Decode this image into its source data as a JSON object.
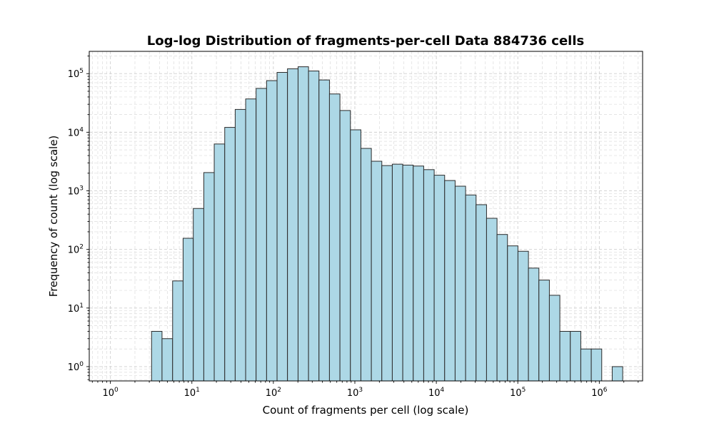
{
  "chart_data": {
    "type": "bar",
    "title": "Log-log Distribution of fragments-per-cell Data 884736 cells",
    "xlabel": "Count of fragments per cell (log scale)",
    "ylabel": "Frequency of count (log scale)",
    "xscale": "log",
    "yscale": "log",
    "xlim": [
      0.55,
      3400000
    ],
    "ylim": [
      0.57,
      240000
    ],
    "grid": true,
    "x_ticks": [
      {
        "base": "10",
        "exp": "0",
        "value": 1
      },
      {
        "base": "10",
        "exp": "1",
        "value": 10
      },
      {
        "base": "10",
        "exp": "2",
        "value": 100
      },
      {
        "base": "10",
        "exp": "3",
        "value": 1000
      },
      {
        "base": "10",
        "exp": "4",
        "value": 10000
      },
      {
        "base": "10",
        "exp": "5",
        "value": 100000
      },
      {
        "base": "10",
        "exp": "6",
        "value": 1000000
      }
    ],
    "y_ticks": [
      {
        "base": "10",
        "exp": "0",
        "value": 1
      },
      {
        "base": "10",
        "exp": "1",
        "value": 10
      },
      {
        "base": "10",
        "exp": "2",
        "value": 100
      },
      {
        "base": "10",
        "exp": "3",
        "value": 1000
      },
      {
        "base": "10",
        "exp": "4",
        "value": 10000
      },
      {
        "base": "10",
        "exp": "5",
        "value": 100000
      }
    ],
    "bin_edges": [
      3.2,
      4.3,
      5.8,
      7.8,
      10.4,
      14.0,
      18.8,
      25.3,
      34.0,
      45.7,
      61.4,
      82.6,
      111,
      149,
      201,
      270,
      363,
      488,
      656,
      882,
      1186,
      1594,
      2143,
      2881,
      3873,
      5207,
      7000,
      9411,
      12651,
      17008,
      22865,
      30739,
      41325,
      55556,
      74689,
      100409,
      134988,
      181474,
      243968,
      327984,
      440929,
      592770,
      796900,
      1071326,
      1440255,
      1936230
    ],
    "values": [
      4,
      3,
      29,
      155,
      500,
      2050,
      6300,
      12100,
      24500,
      37000,
      56000,
      76000,
      105000,
      121000,
      131000,
      111000,
      78000,
      45000,
      23500,
      11000,
      5300,
      3200,
      2700,
      2850,
      2750,
      2650,
      2300,
      1850,
      1500,
      1200,
      850,
      580,
      340,
      180,
      115,
      93,
      48,
      30,
      16.5,
      4,
      4,
      2,
      2,
      0,
      1
    ]
  }
}
